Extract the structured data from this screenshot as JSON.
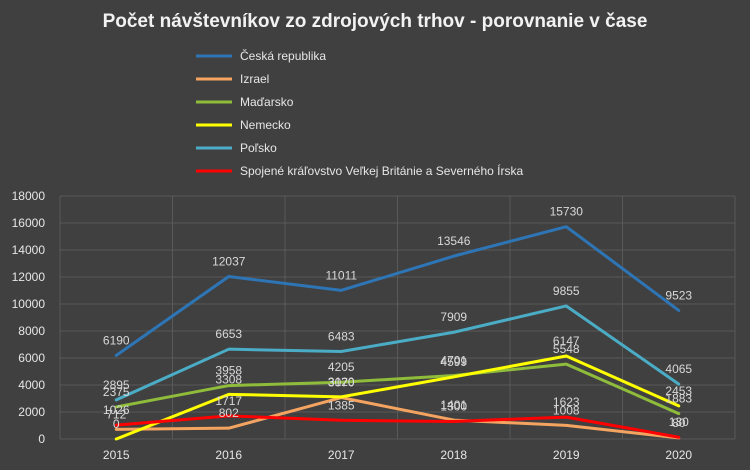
{
  "chart_data": {
    "type": "line",
    "title": "Počet návštevníkov zo zdrojových trhov - porovnanie v čase",
    "xlabel": "",
    "ylabel": "",
    "categories": [
      "2015",
      "2016",
      "2017",
      "2018",
      "2019",
      "2020"
    ],
    "ylim": [
      0,
      18000
    ],
    "yticks": [
      "0",
      "2000",
      "4000",
      "6000",
      "8000",
      "10000",
      "12000",
      "14000",
      "16000",
      "18000"
    ],
    "grid": true,
    "legend_position": "top",
    "series": [
      {
        "name": "Česká republika",
        "color": "#2e75b6",
        "values": [
          6190,
          12037,
          11011,
          13546,
          15730,
          9523
        ],
        "labels": [
          "6190",
          "12037",
          "11011",
          "13546",
          "15730",
          "9523"
        ]
      },
      {
        "name": "Izrael",
        "color": "#f4a460",
        "values": [
          712,
          802,
          3070,
          1401,
          1008,
          80
        ],
        "labels": [
          "712",
          "802",
          "3070",
          "1401",
          "1008",
          "80"
        ]
      },
      {
        "name": "Maďarsko",
        "color": "#8fbc3a",
        "values": [
          2375,
          3958,
          4205,
          4701,
          5548,
          1883
        ],
        "labels": [
          "2375",
          "3958",
          "4205",
          "4701",
          "5548",
          "1883"
        ]
      },
      {
        "name": "Nemecko",
        "color": "#ffff00",
        "values": [
          0,
          3308,
          3120,
          4599,
          6147,
          2453
        ],
        "labels": [
          "0",
          "3308",
          "3120",
          "4599",
          "6147",
          "2453"
        ]
      },
      {
        "name": "Poľsko",
        "color": "#4bacc6",
        "values": [
          2895,
          6653,
          6483,
          7909,
          9855,
          4065
        ],
        "labels": [
          "2895",
          "6653",
          "6483",
          "7909",
          "9855",
          "4065"
        ]
      },
      {
        "name": "Spojené kráľovstvo Veľkej Británie a Severného Írska",
        "color": "#ff0000",
        "values": [
          1026,
          1717,
          1385,
          1300,
          1623,
          130
        ],
        "labels": [
          "1026",
          "1717",
          "1385",
          "1300",
          "1623",
          "130"
        ]
      }
    ]
  }
}
